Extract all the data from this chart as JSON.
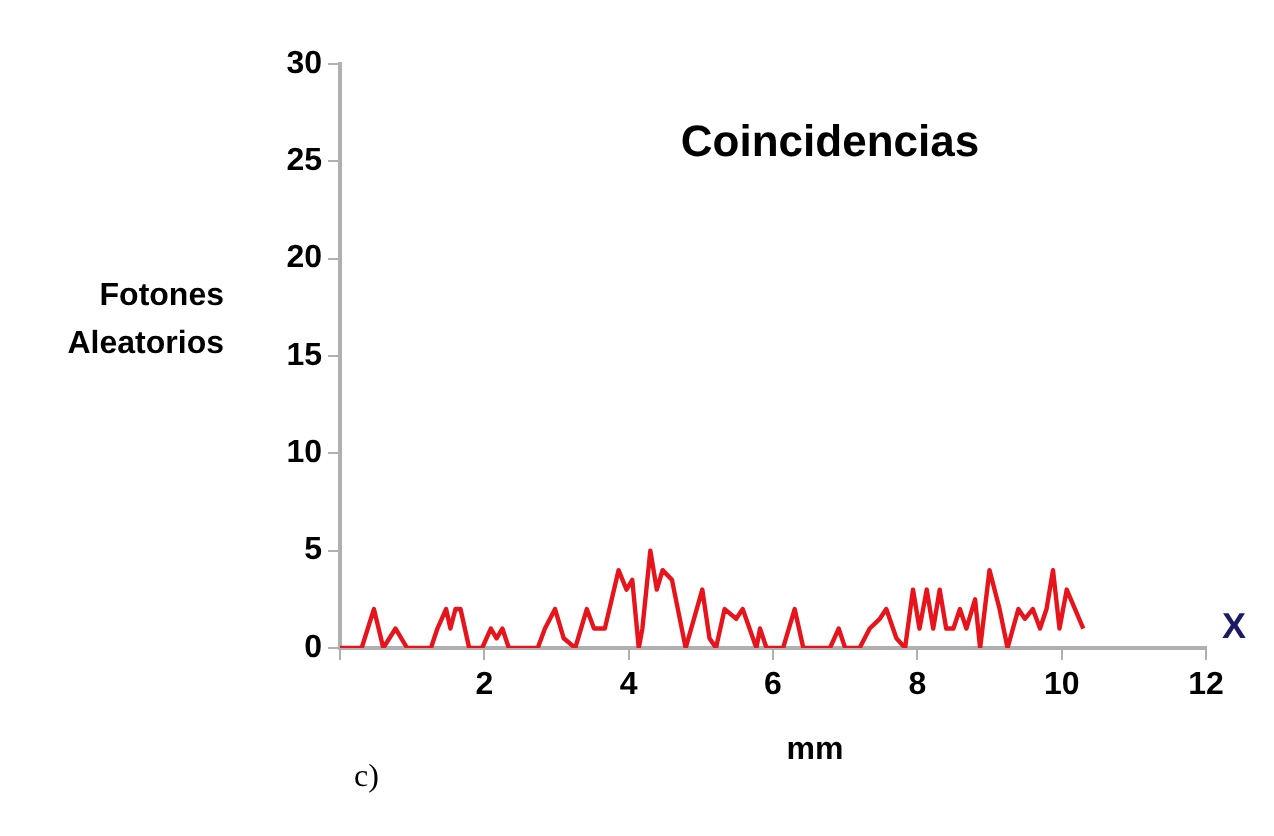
{
  "chart_data": {
    "type": "line",
    "title": "Coincidencias",
    "xlabel": "mm",
    "ylabel": "Fotones Aleatorios",
    "annotations": [
      "X",
      "c)"
    ],
    "x": [
      0,
      0.3,
      0.47,
      0.6,
      0.77,
      0.93,
      1.26,
      1.35,
      1.47,
      1.53,
      1.6,
      1.67,
      1.79,
      1.97,
      2.09,
      2.17,
      2.25,
      2.34,
      2.74,
      2.84,
      2.98,
      3.1,
      3.26,
      3.42,
      3.52,
      3.67,
      3.86,
      3.97,
      4.05,
      4.14,
      4.19,
      4.3,
      4.39,
      4.47,
      4.6,
      4.79,
      5.02,
      5.12,
      5.21,
      5.33,
      5.49,
      5.58,
      5.77,
      5.82,
      5.91,
      6.14,
      6.3,
      6.42,
      6.79,
      6.91,
      7.0,
      7.2,
      7.34,
      7.48,
      7.57,
      7.71,
      7.83,
      7.94,
      8.03,
      8.13,
      8.22,
      8.31,
      8.4,
      8.5,
      8.59,
      8.68,
      8.8,
      8.87,
      9.0,
      9.14,
      9.25,
      9.4,
      9.49,
      9.6,
      9.7,
      9.79,
      9.88,
      9.97,
      10.07,
      10.3
    ],
    "series": [
      {
        "color": "#e8141c",
        "values": [
          0,
          0,
          2,
          0,
          1,
          0,
          0,
          1,
          2,
          1,
          2,
          2,
          0,
          0,
          1,
          0.5,
          1,
          0,
          0,
          1,
          2,
          0.5,
          0,
          2,
          1,
          1,
          4,
          3,
          3.5,
          0,
          1,
          5,
          3,
          4,
          3.5,
          0,
          3,
          0.5,
          0,
          2,
          1.5,
          2,
          0,
          1,
          0,
          0,
          2,
          0,
          0,
          1,
          0,
          0,
          1,
          1.5,
          2,
          0.5,
          0,
          3,
          1,
          3,
          1,
          3,
          1,
          1,
          2,
          1,
          2.5,
          0,
          4,
          2,
          0,
          2,
          1.5,
          2,
          1,
          2,
          4,
          1,
          3,
          1
        ]
      }
    ],
    "xlim": [
      0,
      12
    ],
    "xticks": [
      {
        "value": 0,
        "label": null
      },
      2,
      4,
      6,
      8,
      10,
      12
    ],
    "ylim": [
      0,
      30
    ],
    "yticks": [
      0,
      5,
      10,
      15,
      20,
      25,
      30
    ],
    "grid": false,
    "legend": false,
    "marker": "none",
    "line_style": "solid"
  }
}
